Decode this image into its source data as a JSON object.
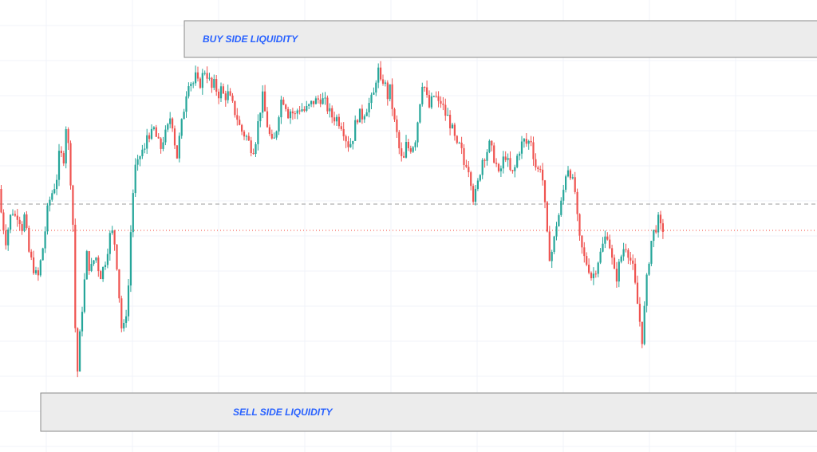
{
  "chart_data": {
    "type": "candlestick",
    "title": "",
    "xlabel": "",
    "ylabel": "",
    "ylim": [
      0,
      567
    ],
    "grid": true,
    "colors": {
      "up": "#26a69a",
      "down": "#ef5350",
      "grid": "#f0f3fa",
      "zone_fill": "#ececec",
      "zone_border": "#8a8a8a",
      "zone_text": "#2962ff",
      "dashed_level": "#9e9e9e",
      "dotted_level": "#f44336"
    },
    "zones": [
      {
        "label": "BUY SIDE LIQUIDITY",
        "top": 541,
        "bottom": 495,
        "x_start": 231
      },
      {
        "label": "SELL SIDE LIQUIDITY",
        "top": 74,
        "bottom": 26,
        "x_start": 51
      }
    ],
    "levels": [
      {
        "style": "dashed",
        "value": 311
      },
      {
        "style": "dotted",
        "value": 278
      }
    ],
    "path": [
      [
        0,
        330
      ],
      [
        6,
        290
      ],
      [
        10,
        265
      ],
      [
        14,
        285
      ],
      [
        18,
        305
      ],
      [
        22,
        295
      ],
      [
        26,
        300
      ],
      [
        30,
        280
      ],
      [
        34,
        298
      ],
      [
        38,
        255
      ],
      [
        42,
        240
      ],
      [
        46,
        228
      ],
      [
        50,
        215
      ],
      [
        54,
        240
      ],
      [
        58,
        265
      ],
      [
        62,
        300
      ],
      [
        66,
        320
      ],
      [
        70,
        330
      ],
      [
        74,
        345
      ],
      [
        78,
        380
      ],
      [
        82,
        360
      ],
      [
        86,
        415
      ],
      [
        90,
        365
      ],
      [
        94,
        300
      ],
      [
        97,
        160
      ],
      [
        100,
        100
      ],
      [
        104,
        160
      ],
      [
        108,
        205
      ],
      [
        112,
        250
      ],
      [
        116,
        225
      ],
      [
        120,
        240
      ],
      [
        124,
        245
      ],
      [
        128,
        220
      ],
      [
        132,
        230
      ],
      [
        136,
        245
      ],
      [
        140,
        270
      ],
      [
        144,
        275
      ],
      [
        148,
        255
      ],
      [
        152,
        200
      ],
      [
        156,
        145
      ],
      [
        160,
        165
      ],
      [
        164,
        210
      ],
      [
        168,
        305
      ],
      [
        172,
        355
      ],
      [
        176,
        360
      ],
      [
        180,
        380
      ],
      [
        184,
        375
      ],
      [
        188,
        405
      ],
      [
        192,
        395
      ],
      [
        196,
        405
      ],
      [
        200,
        390
      ],
      [
        204,
        380
      ],
      [
        208,
        395
      ],
      [
        212,
        400
      ],
      [
        216,
        420
      ],
      [
        220,
        410
      ],
      [
        224,
        365
      ],
      [
        228,
        395
      ],
      [
        232,
        420
      ],
      [
        236,
        450
      ],
      [
        240,
        470
      ],
      [
        244,
        460
      ],
      [
        248,
        470
      ],
      [
        252,
        458
      ],
      [
        256,
        470
      ],
      [
        260,
        480
      ],
      [
        264,
        470
      ],
      [
        268,
        455
      ],
      [
        272,
        462
      ],
      [
        276,
        448
      ],
      [
        280,
        455
      ],
      [
        284,
        445
      ],
      [
        288,
        450
      ],
      [
        292,
        440
      ],
      [
        296,
        430
      ],
      [
        300,
        420
      ],
      [
        304,
        405
      ],
      [
        308,
        400
      ],
      [
        312,
        395
      ],
      [
        316,
        385
      ],
      [
        320,
        380
      ],
      [
        324,
        395
      ],
      [
        328,
        425
      ],
      [
        332,
        445
      ],
      [
        336,
        420
      ],
      [
        340,
        400
      ],
      [
        344,
        385
      ],
      [
        348,
        395
      ],
      [
        352,
        425
      ],
      [
        356,
        445
      ],
      [
        360,
        440
      ],
      [
        364,
        425
      ],
      [
        368,
        430
      ],
      [
        372,
        420
      ],
      [
        376,
        430
      ],
      [
        380,
        432
      ],
      [
        384,
        428
      ],
      [
        388,
        430
      ],
      [
        392,
        435
      ],
      [
        396,
        440
      ],
      [
        400,
        440
      ],
      [
        404,
        445
      ],
      [
        408,
        440
      ],
      [
        412,
        435
      ],
      [
        416,
        425
      ],
      [
        420,
        420
      ],
      [
        424,
        420
      ],
      [
        428,
        415
      ],
      [
        432,
        410
      ],
      [
        436,
        395
      ],
      [
        440,
        385
      ],
      [
        444,
        390
      ],
      [
        448,
        410
      ],
      [
        452,
        425
      ],
      [
        456,
        420
      ],
      [
        460,
        428
      ],
      [
        464,
        435
      ],
      [
        468,
        440
      ],
      [
        472,
        450
      ],
      [
        476,
        485
      ],
      [
        480,
        460
      ],
      [
        484,
        470
      ],
      [
        488,
        445
      ],
      [
        492,
        455
      ],
      [
        496,
        420
      ],
      [
        500,
        400
      ],
      [
        504,
        375
      ],
      [
        508,
        360
      ],
      [
        512,
        385
      ],
      [
        516,
        380
      ],
      [
        520,
        385
      ],
      [
        524,
        395
      ],
      [
        528,
        430
      ],
      [
        532,
        465
      ],
      [
        536,
        455
      ],
      [
        540,
        430
      ],
      [
        544,
        440
      ],
      [
        548,
        450
      ],
      [
        552,
        435
      ],
      [
        556,
        440
      ],
      [
        560,
        425
      ],
      [
        564,
        420
      ],
      [
        568,
        410
      ],
      [
        572,
        395
      ],
      [
        576,
        380
      ],
      [
        580,
        385
      ],
      [
        584,
        360
      ],
      [
        588,
        365
      ],
      [
        592,
        350
      ],
      [
        596,
        320
      ],
      [
        600,
        325
      ],
      [
        604,
        350
      ],
      [
        608,
        370
      ],
      [
        612,
        375
      ],
      [
        616,
        385
      ],
      [
        620,
        375
      ],
      [
        624,
        365
      ],
      [
        628,
        345
      ],
      [
        632,
        360
      ],
      [
        636,
        375
      ],
      [
        640,
        360
      ],
      [
        644,
        345
      ],
      [
        648,
        355
      ],
      [
        652,
        375
      ],
      [
        656,
        385
      ],
      [
        660,
        390
      ],
      [
        664,
        385
      ],
      [
        668,
        395
      ],
      [
        672,
        370
      ],
      [
        676,
        350
      ],
      [
        680,
        360
      ],
      [
        684,
        335
      ],
      [
        688,
        275
      ],
      [
        692,
        245
      ],
      [
        696,
        255
      ],
      [
        700,
        285
      ],
      [
        704,
        300
      ],
      [
        708,
        320
      ],
      [
        712,
        350
      ],
      [
        716,
        360
      ],
      [
        720,
        340
      ],
      [
        724,
        325
      ],
      [
        728,
        270
      ],
      [
        732,
        255
      ],
      [
        736,
        240
      ],
      [
        740,
        235
      ],
      [
        744,
        220
      ],
      [
        748,
        225
      ],
      [
        752,
        240
      ],
      [
        756,
        250
      ],
      [
        760,
        265
      ],
      [
        764,
        275
      ],
      [
        768,
        255
      ],
      [
        772,
        225
      ],
      [
        776,
        220
      ],
      [
        780,
        240
      ],
      [
        784,
        255
      ],
      [
        788,
        260
      ],
      [
        792,
        245
      ],
      [
        796,
        230
      ],
      [
        800,
        200
      ],
      [
        804,
        170
      ],
      [
        808,
        140
      ],
      [
        812,
        200
      ],
      [
        816,
        240
      ],
      [
        820,
        270
      ],
      [
        824,
        280
      ],
      [
        828,
        290
      ],
      [
        831,
        280
      ]
    ]
  },
  "labels": {
    "buy_side": "BUY SIDE LIQUIDITY",
    "sell_side": "SELL SIDE LIQUIDITY"
  }
}
